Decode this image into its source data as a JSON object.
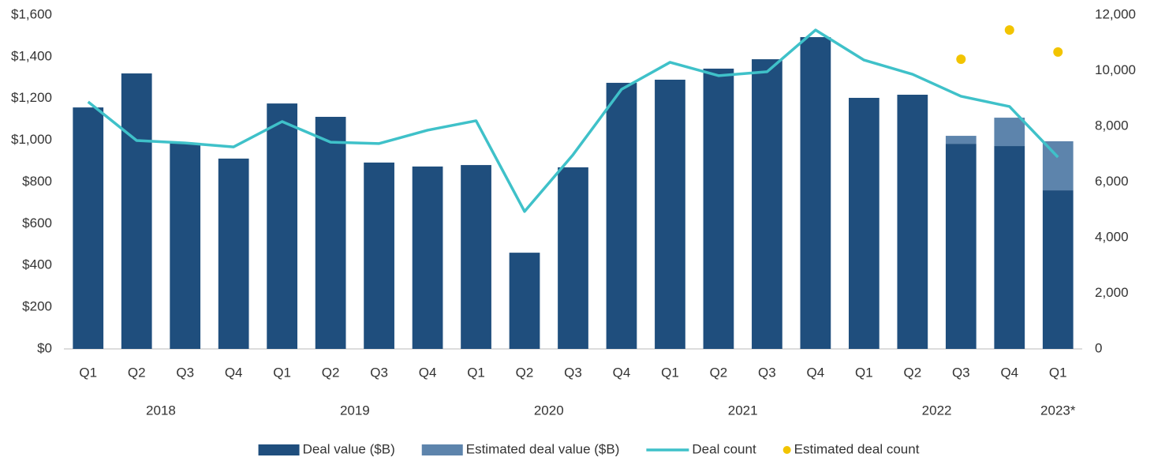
{
  "chart_data": {
    "type": "bar",
    "stacked": true,
    "categories": [
      "Q1",
      "Q2",
      "Q3",
      "Q4",
      "Q1",
      "Q2",
      "Q3",
      "Q4",
      "Q1",
      "Q2",
      "Q3",
      "Q4",
      "Q1",
      "Q2",
      "Q3",
      "Q4",
      "Q1",
      "Q2",
      "Q3",
      "Q4",
      "Q1"
    ],
    "years": [
      "2018",
      "2019",
      "2020",
      "2021",
      "2022",
      "2023*"
    ],
    "ylim": [
      0,
      1600
    ],
    "yticks": [
      {
        "value": 0,
        "label": "$0"
      },
      {
        "value": 200,
        "label": "$200"
      },
      {
        "value": 400,
        "label": "$400"
      },
      {
        "value": 600,
        "label": "$600"
      },
      {
        "value": 800,
        "label": "$800"
      },
      {
        "value": 1000,
        "label": "$1,000"
      },
      {
        "value": 1200,
        "label": "$1,200"
      },
      {
        "value": 1400,
        "label": "$1,400"
      },
      {
        "value": 1600,
        "label": "$1,600"
      }
    ],
    "y2lim": [
      0,
      12000
    ],
    "y2ticks": [
      0,
      {
        "value": 2000,
        "label": "2,000"
      },
      {
        "value": 4000,
        "label": "4,000"
      },
      {
        "value": 6000,
        "label": "6,000"
      },
      {
        "value": 8000,
        "label": "8,000"
      },
      {
        "value": 10000,
        "label": "10,000"
      },
      {
        "value": 12000,
        "label": "12,000"
      }
    ],
    "legend": "bottom",
    "series": [
      {
        "name": "Deal value ($B)",
        "type": "bar",
        "color": "#1f4e7d",
        "values": [
          1157,
          1320,
          987,
          912,
          1176,
          1112,
          893,
          874,
          881,
          461,
          870,
          1275,
          1290,
          1343,
          1388,
          1494,
          1203,
          1218,
          983,
          972,
          760
        ]
      },
      {
        "name": "Estimated deal value ($B)",
        "type": "bar",
        "color": "#5d84ac",
        "values": [
          null,
          null,
          null,
          null,
          null,
          null,
          null,
          null,
          null,
          null,
          null,
          null,
          null,
          null,
          null,
          null,
          null,
          null,
          38,
          136,
          235
        ]
      },
      {
        "name": "Deal count",
        "type": "line",
        "axis": "y2",
        "color": "#3fc1c9",
        "values": [
          8880,
          7490,
          7400,
          7260,
          8170,
          7430,
          7380,
          7860,
          8200,
          4940,
          6980,
          9330,
          10300,
          9820,
          9960,
          11460,
          10380,
          9870,
          9080,
          8710,
          6890
        ]
      },
      {
        "name": "Estimated deal count",
        "type": "scatter",
        "axis": "y2",
        "color": "#f2c400",
        "values": [
          null,
          null,
          null,
          null,
          null,
          null,
          null,
          null,
          null,
          null,
          null,
          null,
          null,
          null,
          null,
          null,
          null,
          null,
          10410,
          11460,
          10670
        ]
      }
    ]
  }
}
